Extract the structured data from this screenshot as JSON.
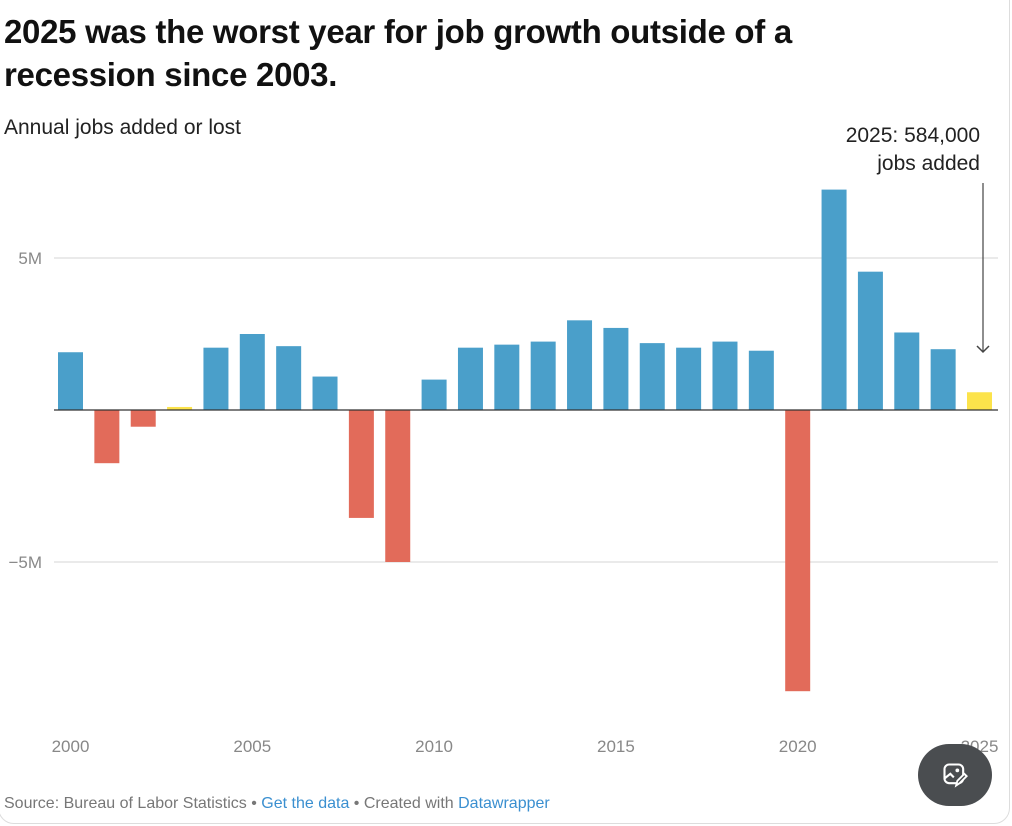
{
  "chart_data": {
    "type": "bar",
    "title": "2025 was the worst year for job growth outside of a recession since 2003.",
    "subtitle": "Annual jobs added or lost",
    "xlabel": "",
    "ylabel": "Annual jobs added or lost",
    "categories": [
      2000,
      2001,
      2002,
      2003,
      2004,
      2005,
      2006,
      2007,
      2008,
      2009,
      2010,
      2011,
      2012,
      2013,
      2014,
      2015,
      2016,
      2017,
      2018,
      2019,
      2020,
      2021,
      2022,
      2023,
      2024,
      2025
    ],
    "values": [
      1.9,
      -1.75,
      -0.55,
      0.1,
      2.05,
      2.5,
      2.1,
      1.1,
      -3.55,
      -5.0,
      1.0,
      2.05,
      2.15,
      2.25,
      2.95,
      2.7,
      2.2,
      2.05,
      2.25,
      1.95,
      -9.25,
      7.25,
      4.55,
      2.55,
      2.0,
      0.584
    ],
    "units": "millions of jobs",
    "highlight_years": [
      2003,
      2025
    ],
    "ylim": [
      -10,
      8
    ],
    "yticks": [
      {
        "value": 5,
        "label": "5M"
      },
      {
        "value": -5,
        "label": "−5M"
      }
    ],
    "xticks": [
      "2000",
      "2005",
      "2010",
      "2015",
      "2020",
      "2025"
    ],
    "annotation": {
      "line1": "2025: 584,000",
      "line2": "jobs added"
    },
    "colors": {
      "positive": "#4a9fca",
      "negative": "#e26b5a",
      "highlight": "#fce34b"
    },
    "grid": true,
    "legend": "none"
  },
  "footer": {
    "source": "Source: Bureau of Labor Statistics",
    "sep1": " • ",
    "get_data": "Get the data",
    "sep2": " • Created with ",
    "datawrapper": "Datawrapper"
  }
}
